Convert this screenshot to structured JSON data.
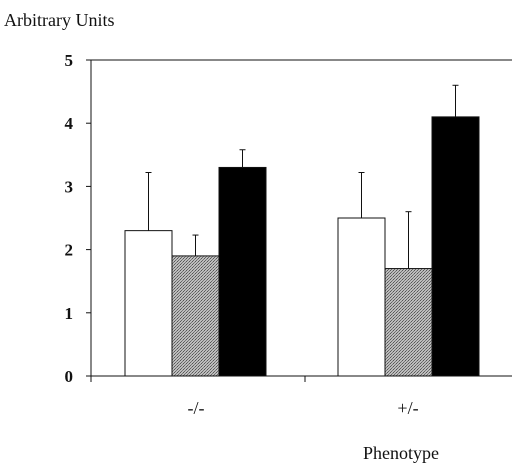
{
  "chart_data": {
    "type": "bar",
    "ylabel": "Arbitrary Units",
    "xlabel": "Phenotype",
    "categories": [
      "-/-",
      "+/-"
    ],
    "ylim": [
      0,
      5
    ],
    "yticks": [
      0,
      1,
      2,
      3,
      4,
      5
    ],
    "grid": false,
    "legend": "none",
    "series": [
      {
        "values": [
          2.3,
          2.5
        ],
        "errors": [
          0.92,
          0.72
        ],
        "color": "#ffffff",
        "pattern": "none"
      },
      {
        "values": [
          1.9,
          1.7
        ],
        "errors": [
          0.33,
          0.9
        ],
        "color": "#a8a8a8",
        "pattern": "stipple"
      },
      {
        "values": [
          3.3,
          4.1
        ],
        "errors": [
          0.28,
          0.5
        ],
        "color": "#000000",
        "pattern": "none"
      }
    ]
  }
}
